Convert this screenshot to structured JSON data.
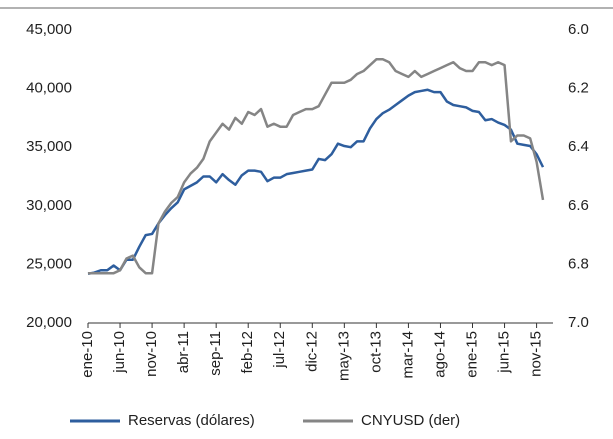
{
  "chart_data": {
    "type": "line",
    "categories": [
      "ene-10",
      null,
      null,
      null,
      null,
      "jun-10",
      null,
      null,
      null,
      null,
      "nov-10",
      null,
      null,
      null,
      null,
      "abr-11",
      null,
      null,
      null,
      null,
      "sep-11",
      null,
      null,
      null,
      null,
      "feb-12",
      null,
      null,
      null,
      null,
      "jul-12",
      null,
      null,
      null,
      null,
      "dic-12",
      null,
      null,
      null,
      null,
      "may-13",
      null,
      null,
      null,
      null,
      "oct-13",
      null,
      null,
      null,
      null,
      "mar-14",
      null,
      null,
      null,
      null,
      "ago-14",
      null,
      null,
      null,
      null,
      "ene-15",
      null,
      null,
      null,
      null,
      "jun-15",
      null,
      null,
      null,
      null,
      "nov-15",
      null
    ],
    "series": [
      {
        "name": "Reservas (dólares)",
        "color": "#2e5e9e",
        "values": [
          24200,
          24300,
          24500,
          24500,
          24900,
          24500,
          25400,
          25400,
          26500,
          27500,
          27600,
          28500,
          29200,
          29800,
          30300,
          31400,
          31700,
          32000,
          32500,
          32500,
          32000,
          32700,
          32200,
          31800,
          32600,
          33000,
          33000,
          32900,
          32100,
          32400,
          32400,
          32700,
          32800,
          32900,
          33000,
          33100,
          34000,
          33900,
          34400,
          35300,
          35100,
          35000,
          35500,
          35500,
          36600,
          37400,
          37900,
          38200,
          38600,
          39000,
          39400,
          39700,
          39800,
          39900,
          39700,
          39700,
          38900,
          38600,
          38500,
          38400,
          38100,
          38000,
          37300,
          37400,
          37100,
          36900,
          36500,
          35300,
          35200,
          35100,
          34400,
          33300
        ]
      },
      {
        "name": "CNYUSD (der)",
        "color": "#858585",
        "axis": "y2",
        "values": [
          6.83,
          6.83,
          6.83,
          6.83,
          6.83,
          6.82,
          6.78,
          6.77,
          6.81,
          6.83,
          6.83,
          6.66,
          6.62,
          6.59,
          6.57,
          6.52,
          6.49,
          6.47,
          6.44,
          6.38,
          6.35,
          6.32,
          6.34,
          6.3,
          6.32,
          6.28,
          6.29,
          6.27,
          6.33,
          6.32,
          6.33,
          6.33,
          6.29,
          6.28,
          6.27,
          6.27,
          6.26,
          6.22,
          6.18,
          6.18,
          6.18,
          6.17,
          6.15,
          6.14,
          6.12,
          6.1,
          6.1,
          6.11,
          6.14,
          6.15,
          6.16,
          6.14,
          6.16,
          6.15,
          6.14,
          6.13,
          6.12,
          6.11,
          6.13,
          6.14,
          6.14,
          6.11,
          6.11,
          6.12,
          6.11,
          6.12,
          6.38,
          6.36,
          6.36,
          6.37,
          6.45,
          6.58
        ]
      }
    ],
    "ylim": [
      20000,
      45000
    ],
    "yticks": [
      {
        "value": 20000,
        "label": "20,000"
      },
      {
        "value": 25000,
        "label": "25,000"
      },
      {
        "value": 30000,
        "label": "30,000"
      },
      {
        "value": 35000,
        "label": "35,000"
      },
      {
        "value": 40000,
        "label": "40,000"
      },
      {
        "value": 45000,
        "label": "45,000"
      }
    ],
    "y2lim": [
      6.0,
      7.0
    ],
    "y2_inverted": true,
    "y2ticks": [
      {
        "value": 6,
        "label": "6.0"
      },
      {
        "value": 6.2,
        "label": "6.2"
      },
      {
        "value": 6.4,
        "label": "6.4"
      },
      {
        "value": 6.6,
        "label": "6.6"
      },
      {
        "value": 6.8,
        "label": "6.8"
      },
      {
        "value": 7,
        "label": "7.0"
      }
    ],
    "legend": "bottom"
  }
}
